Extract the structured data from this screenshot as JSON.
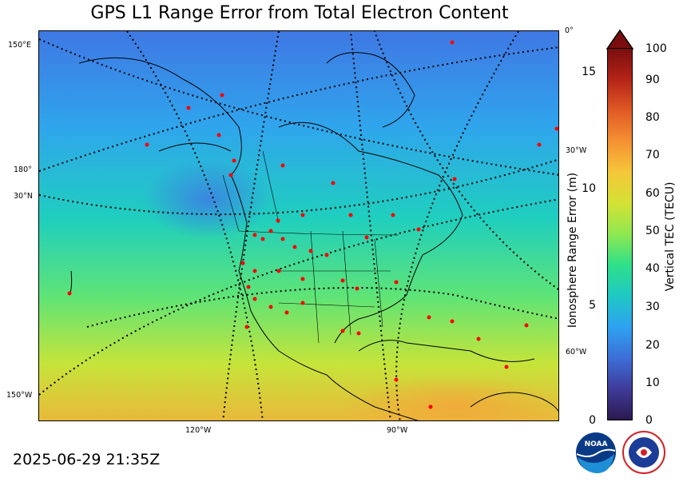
{
  "title": "GPS L1 Range Error from Total Electron Content",
  "timestamp": "2025-06-29 21:35Z",
  "map": {
    "lon_labels_bottom": [
      "120°W",
      "90°W"
    ],
    "lat_lon_labels_left": [
      "150°E",
      "180°",
      "30°N",
      "150°W"
    ],
    "lon_labels_right": [
      "0°",
      "30°W",
      "60°W"
    ]
  },
  "colorbar": {
    "tec_label": "Vertical TEC (TECU)",
    "range_label": "Ionosphere Range Error (m)",
    "tec_ticks": [
      "0",
      "10",
      "20",
      "30",
      "40",
      "50",
      "60",
      "70",
      "80",
      "90",
      "100"
    ],
    "range_ticks": [
      "0",
      "5",
      "10",
      "15"
    ],
    "colors": [
      "#2b1a4f",
      "#3f3b9a",
      "#3c6fd8",
      "#2ea2f0",
      "#1fc8c4",
      "#2ee08a",
      "#8ee850",
      "#d4e235",
      "#f5c73a",
      "#f59133",
      "#e05a24",
      "#b42418",
      "#7a0e0e"
    ]
  },
  "logos": {
    "noaa": "NOAA",
    "nws": "NATIONAL WEATHER SERVICE"
  }
}
